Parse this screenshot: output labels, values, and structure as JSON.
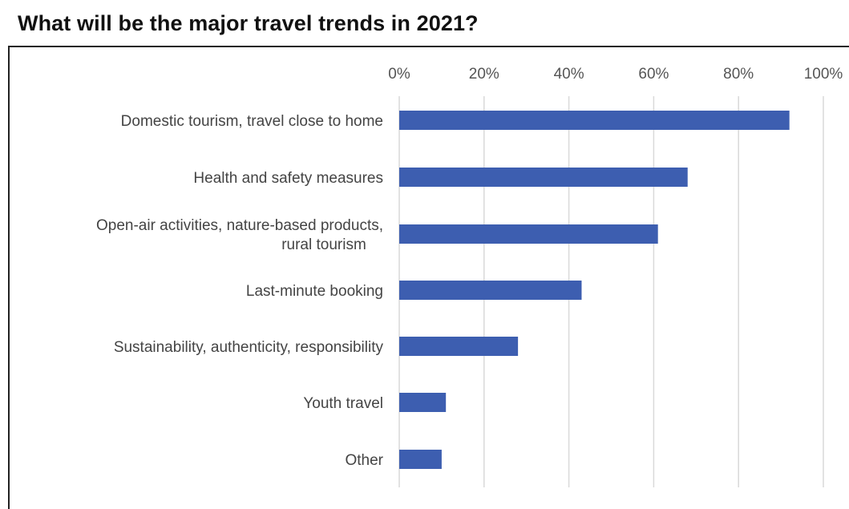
{
  "chart_data": {
    "type": "bar",
    "orientation": "horizontal",
    "title": "What will be the major travel trends in 2021?",
    "categories": [
      "Domestic tourism, travel close to home",
      "Health and safety measures",
      "Open-air activities, nature-based products, rural tourism",
      "Last-minute booking",
      "Sustainability, authenticity, responsibility",
      "Youth travel",
      "Other"
    ],
    "category_lines": [
      [
        "Domestic tourism, travel close to home"
      ],
      [
        "Health and safety measures"
      ],
      [
        "Open-air activities, nature-based products,",
        "rural tourism"
      ],
      [
        "Last-minute booking"
      ],
      [
        "Sustainability, authenticity, responsibility"
      ],
      [
        "Youth travel"
      ],
      [
        "Other"
      ]
    ],
    "values": [
      92,
      68,
      61,
      43,
      28,
      11,
      10
    ],
    "xlim": [
      0,
      100
    ],
    "xticks": [
      "0%",
      "20%",
      "40%",
      "60%",
      "80%",
      "100%"
    ],
    "grid": true,
    "legend": "none",
    "bar_color": "#3d5eb0"
  }
}
